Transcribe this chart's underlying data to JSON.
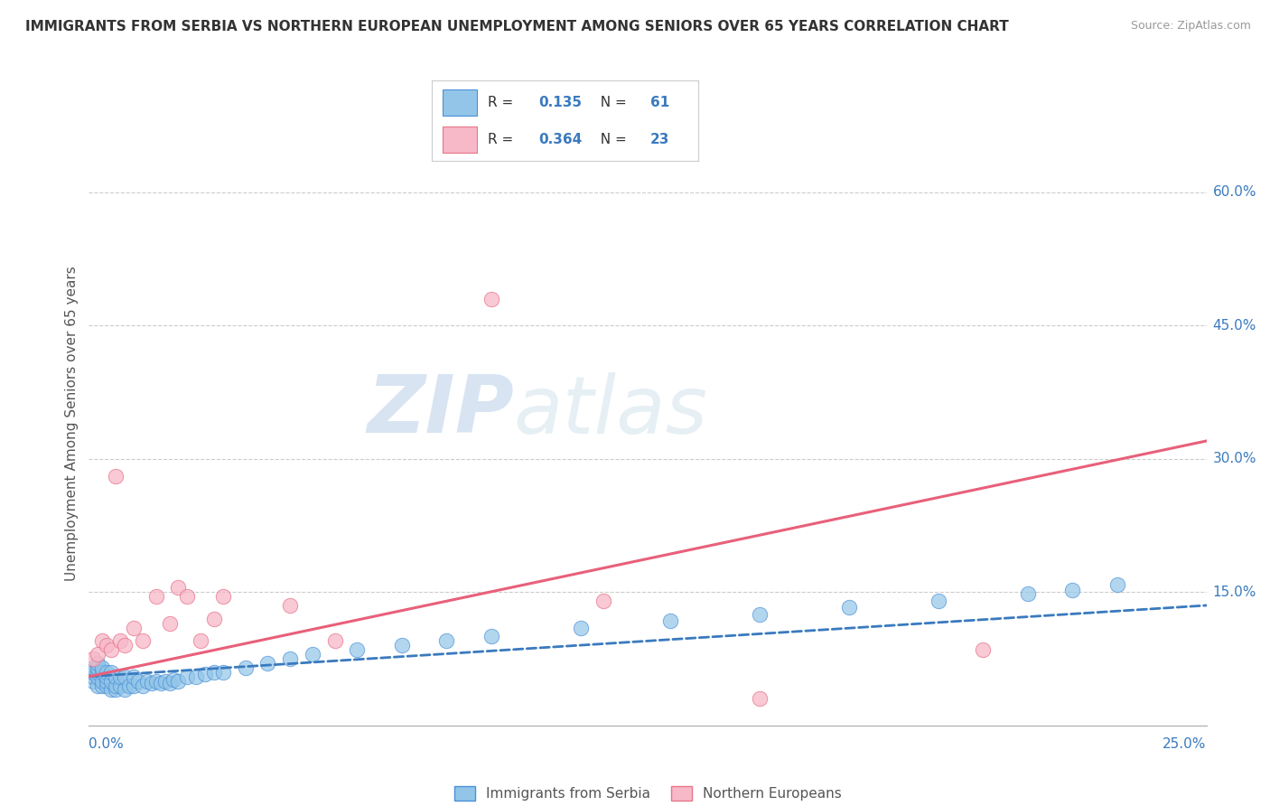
{
  "title": "IMMIGRANTS FROM SERBIA VS NORTHERN EUROPEAN UNEMPLOYMENT AMONG SENIORS OVER 65 YEARS CORRELATION CHART",
  "source": "Source: ZipAtlas.com",
  "ylabel": "Unemployment Among Seniors over 65 years",
  "xlim": [
    0,
    0.25
  ],
  "ylim": [
    0,
    0.68
  ],
  "yticks_right": [
    0.15,
    0.3,
    0.45,
    0.6
  ],
  "ytick_labels_right": [
    "15.0%",
    "30.0%",
    "45.0%",
    "60.0%"
  ],
  "xtick_labels_left": "0.0%",
  "xtick_labels_right": "25.0%",
  "serbia_color": "#92c5e8",
  "serbia_edge": "#4a90d9",
  "serbia_trendline_color": "#3a7abf",
  "northern_color": "#f7b8c8",
  "northern_edge": "#e8748a",
  "northern_trendline_color": "#e8607a",
  "serbia_R": "0.135",
  "serbia_N": "61",
  "northern_R": "0.364",
  "northern_N": "23",
  "serbia_scatter_x": [
    0.001,
    0.001,
    0.001,
    0.001,
    0.002,
    0.002,
    0.002,
    0.002,
    0.002,
    0.003,
    0.003,
    0.003,
    0.003,
    0.004,
    0.004,
    0.004,
    0.004,
    0.005,
    0.005,
    0.005,
    0.006,
    0.006,
    0.006,
    0.007,
    0.007,
    0.008,
    0.008,
    0.009,
    0.01,
    0.01,
    0.011,
    0.012,
    0.013,
    0.014,
    0.015,
    0.016,
    0.017,
    0.018,
    0.019,
    0.02,
    0.022,
    0.024,
    0.026,
    0.028,
    0.03,
    0.035,
    0.04,
    0.045,
    0.05,
    0.06,
    0.07,
    0.08,
    0.09,
    0.11,
    0.13,
    0.15,
    0.17,
    0.19,
    0.21,
    0.22,
    0.23
  ],
  "serbia_scatter_y": [
    0.05,
    0.055,
    0.06,
    0.065,
    0.045,
    0.055,
    0.06,
    0.065,
    0.07,
    0.045,
    0.05,
    0.06,
    0.065,
    0.045,
    0.05,
    0.055,
    0.06,
    0.04,
    0.05,
    0.06,
    0.04,
    0.045,
    0.055,
    0.045,
    0.055,
    0.04,
    0.055,
    0.045,
    0.045,
    0.055,
    0.05,
    0.045,
    0.05,
    0.048,
    0.05,
    0.048,
    0.05,
    0.048,
    0.052,
    0.05,
    0.055,
    0.055,
    0.058,
    0.06,
    0.06,
    0.065,
    0.07,
    0.075,
    0.08,
    0.085,
    0.09,
    0.095,
    0.1,
    0.11,
    0.118,
    0.125,
    0.133,
    0.14,
    0.148,
    0.152,
    0.158
  ],
  "northern_scatter_x": [
    0.001,
    0.002,
    0.003,
    0.004,
    0.005,
    0.006,
    0.007,
    0.008,
    0.01,
    0.012,
    0.015,
    0.018,
    0.02,
    0.022,
    0.025,
    0.028,
    0.03,
    0.045,
    0.055,
    0.09,
    0.115,
    0.15,
    0.2
  ],
  "northern_scatter_y": [
    0.075,
    0.08,
    0.095,
    0.09,
    0.085,
    0.28,
    0.095,
    0.09,
    0.11,
    0.095,
    0.145,
    0.115,
    0.155,
    0.145,
    0.095,
    0.12,
    0.145,
    0.135,
    0.095,
    0.48,
    0.14,
    0.03,
    0.085
  ],
  "serbia_trend_x": [
    0.0,
    0.25
  ],
  "serbia_trend_y": [
    0.055,
    0.135
  ],
  "northern_trend_x": [
    0.0,
    0.25
  ],
  "northern_trend_y": [
    0.055,
    0.32
  ],
  "watermark_zip": "ZIP",
  "watermark_atlas": "atlas",
  "background_color": "#ffffff",
  "grid_color": "#cccccc",
  "legend_text_color": "#333333",
  "legend_value_color": "#3a7abf"
}
